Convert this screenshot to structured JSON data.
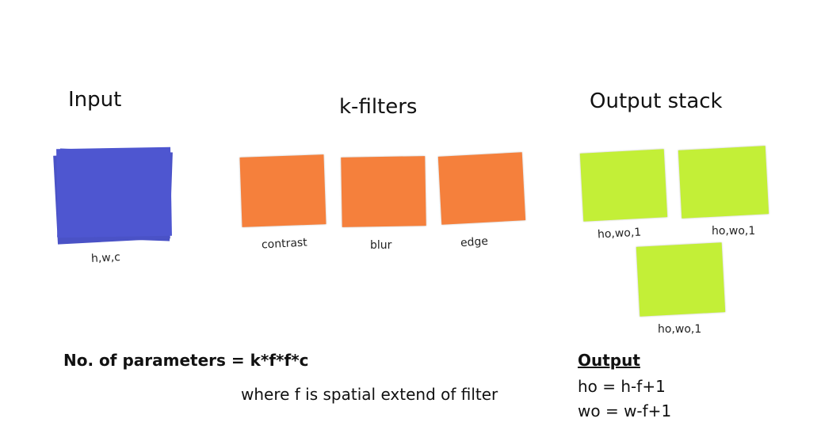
{
  "input": {
    "title": "Input",
    "label": "h,w,c",
    "color": "#4a52c6"
  },
  "filters": {
    "title": "k-filters",
    "color": "#f5803c",
    "items": [
      {
        "label": "contrast"
      },
      {
        "label": "blur"
      },
      {
        "label": "edge"
      }
    ]
  },
  "output_stack": {
    "title": "Output stack",
    "color": "#c3ef37",
    "items": [
      {
        "label": "ho,wo,1"
      },
      {
        "label": "ho,wo,1"
      },
      {
        "label": "ho,wo,1"
      }
    ]
  },
  "parameters": {
    "formula": "No. of parameters = k*f*f*c",
    "note": "where f is spatial extend of filter"
  },
  "output_formula": {
    "heading": "Output",
    "ho": "ho = h-f+1",
    "wo": "wo = w-f+1"
  }
}
